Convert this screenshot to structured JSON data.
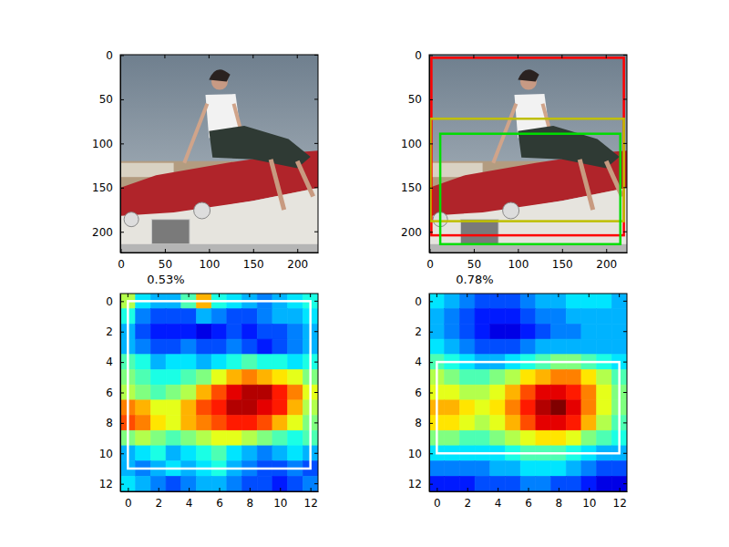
{
  "chart_data": [
    {
      "type": "image",
      "xlim": [
        -0.5,
        223.5
      ],
      "ylim": [
        223.5,
        -0.5
      ],
      "xticks": [
        0,
        50,
        100,
        150,
        200
      ],
      "yticks": [
        0,
        50,
        100,
        150,
        200
      ]
    },
    {
      "type": "image",
      "xlim": [
        -0.5,
        223.5
      ],
      "ylim": [
        223.5,
        -0.5
      ],
      "xticks": [
        0,
        50,
        100,
        150,
        200
      ],
      "yticks": [
        0,
        50,
        100,
        150,
        200
      ],
      "boxes": [
        {
          "color": "#ff0000",
          "x0": 2,
          "y0": 3,
          "x1": 220,
          "y1": 204
        },
        {
          "color": "#bfbf00",
          "x0": 1,
          "y0": 72,
          "x1": 220,
          "y1": 188
        },
        {
          "color": "#00dd00",
          "x0": 12,
          "y0": 89,
          "x1": 216,
          "y1": 214
        }
      ]
    },
    {
      "type": "heatmap",
      "title": "0.53%",
      "xlim": [
        -0.5,
        12.5
      ],
      "ylim": [
        12.5,
        -0.5
      ],
      "xticks": [
        0,
        2,
        4,
        6,
        8,
        10,
        12
      ],
      "yticks": [
        0,
        2,
        4,
        6,
        8,
        10,
        12
      ],
      "color_range": [
        0,
        1
      ],
      "cells": [
        [
          0.55,
          0.35,
          0.3,
          0.3,
          0.45,
          0.7,
          0.4,
          0.35,
          0.3,
          0.25,
          0.3,
          0.35,
          0.4
        ],
        [
          0.4,
          0.25,
          0.2,
          0.2,
          0.2,
          0.3,
          0.25,
          0.2,
          0.2,
          0.25,
          0.3,
          0.3,
          0.35
        ],
        [
          0.3,
          0.2,
          0.15,
          0.15,
          0.15,
          0.1,
          0.15,
          0.2,
          0.15,
          0.2,
          0.2,
          0.25,
          0.3
        ],
        [
          0.3,
          0.25,
          0.2,
          0.2,
          0.25,
          0.2,
          0.2,
          0.25,
          0.2,
          0.15,
          0.2,
          0.25,
          0.3
        ],
        [
          0.45,
          0.4,
          0.3,
          0.35,
          0.35,
          0.3,
          0.35,
          0.4,
          0.45,
          0.4,
          0.4,
          0.35,
          0.4
        ],
        [
          0.5,
          0.45,
          0.4,
          0.4,
          0.45,
          0.5,
          0.6,
          0.7,
          0.75,
          0.7,
          0.65,
          0.6,
          0.5
        ],
        [
          0.55,
          0.5,
          0.45,
          0.5,
          0.55,
          0.7,
          0.8,
          0.9,
          0.95,
          0.95,
          0.85,
          0.75,
          0.6
        ],
        [
          0.75,
          0.7,
          0.6,
          0.6,
          0.7,
          0.8,
          0.85,
          0.95,
          0.95,
          0.9,
          0.85,
          0.7,
          0.55
        ],
        [
          0.8,
          0.75,
          0.65,
          0.6,
          0.7,
          0.75,
          0.8,
          0.85,
          0.85,
          0.8,
          0.7,
          0.6,
          0.5
        ],
        [
          0.5,
          0.55,
          0.5,
          0.45,
          0.5,
          0.55,
          0.6,
          0.6,
          0.55,
          0.5,
          0.45,
          0.4,
          0.45
        ],
        [
          0.3,
          0.35,
          0.4,
          0.3,
          0.35,
          0.4,
          0.45,
          0.35,
          0.3,
          0.25,
          0.3,
          0.35,
          0.3
        ],
        [
          0.3,
          0.25,
          0.3,
          0.35,
          0.3,
          0.35,
          0.4,
          0.3,
          0.25,
          0.2,
          0.2,
          0.25,
          0.2
        ],
        [
          0.35,
          0.3,
          0.25,
          0.2,
          0.25,
          0.3,
          0.3,
          0.25,
          0.2,
          0.2,
          0.15,
          0.2,
          0.25
        ]
      ],
      "boxes": [
        {
          "color": "#ffffff",
          "x0": 0,
          "y0": 0,
          "x1": 12,
          "y1": 11
        }
      ]
    },
    {
      "type": "heatmap",
      "title": "0.78%",
      "xlim": [
        -0.5,
        12.5
      ],
      "ylim": [
        12.5,
        -0.5
      ],
      "xticks": [
        0,
        2,
        4,
        6,
        8,
        10,
        12
      ],
      "yticks": [
        0,
        2,
        4,
        6,
        8,
        10,
        12
      ],
      "color_range": [
        0,
        1
      ],
      "cells": [
        [
          0.35,
          0.3,
          0.25,
          0.2,
          0.2,
          0.2,
          0.25,
          0.3,
          0.3,
          0.35,
          0.35,
          0.35,
          0.3
        ],
        [
          0.3,
          0.25,
          0.2,
          0.15,
          0.15,
          0.15,
          0.2,
          0.25,
          0.25,
          0.3,
          0.3,
          0.3,
          0.3
        ],
        [
          0.3,
          0.25,
          0.2,
          0.15,
          0.1,
          0.1,
          0.15,
          0.2,
          0.25,
          0.25,
          0.3,
          0.3,
          0.3
        ],
        [
          0.35,
          0.3,
          0.25,
          0.2,
          0.2,
          0.2,
          0.25,
          0.3,
          0.3,
          0.3,
          0.3,
          0.3,
          0.3
        ],
        [
          0.45,
          0.4,
          0.35,
          0.3,
          0.3,
          0.35,
          0.4,
          0.45,
          0.5,
          0.5,
          0.45,
          0.4,
          0.35
        ],
        [
          0.55,
          0.5,
          0.45,
          0.45,
          0.5,
          0.55,
          0.65,
          0.7,
          0.75,
          0.75,
          0.65,
          0.55,
          0.45
        ],
        [
          0.6,
          0.6,
          0.55,
          0.55,
          0.6,
          0.7,
          0.8,
          0.9,
          0.9,
          0.85,
          0.75,
          0.6,
          0.5
        ],
        [
          0.7,
          0.7,
          0.65,
          0.6,
          0.65,
          0.75,
          0.85,
          0.95,
          1.0,
          0.9,
          0.75,
          0.6,
          0.5
        ],
        [
          0.65,
          0.65,
          0.6,
          0.55,
          0.6,
          0.7,
          0.8,
          0.9,
          0.9,
          0.85,
          0.7,
          0.55,
          0.45
        ],
        [
          0.5,
          0.5,
          0.45,
          0.45,
          0.5,
          0.55,
          0.6,
          0.65,
          0.65,
          0.6,
          0.5,
          0.45,
          0.4
        ],
        [
          0.35,
          0.35,
          0.35,
          0.35,
          0.35,
          0.4,
          0.45,
          0.45,
          0.45,
          0.4,
          0.35,
          0.3,
          0.3
        ],
        [
          0.25,
          0.25,
          0.25,
          0.25,
          0.3,
          0.3,
          0.35,
          0.35,
          0.35,
          0.3,
          0.25,
          0.2,
          0.2
        ],
        [
          0.15,
          0.15,
          0.15,
          0.2,
          0.2,
          0.2,
          0.25,
          0.25,
          0.2,
          0.2,
          0.15,
          0.1,
          0.1
        ]
      ],
      "boxes": [
        {
          "color": "#ffffff",
          "x0": 0,
          "y0": 4,
          "x1": 12,
          "y1": 10
        }
      ]
    }
  ]
}
